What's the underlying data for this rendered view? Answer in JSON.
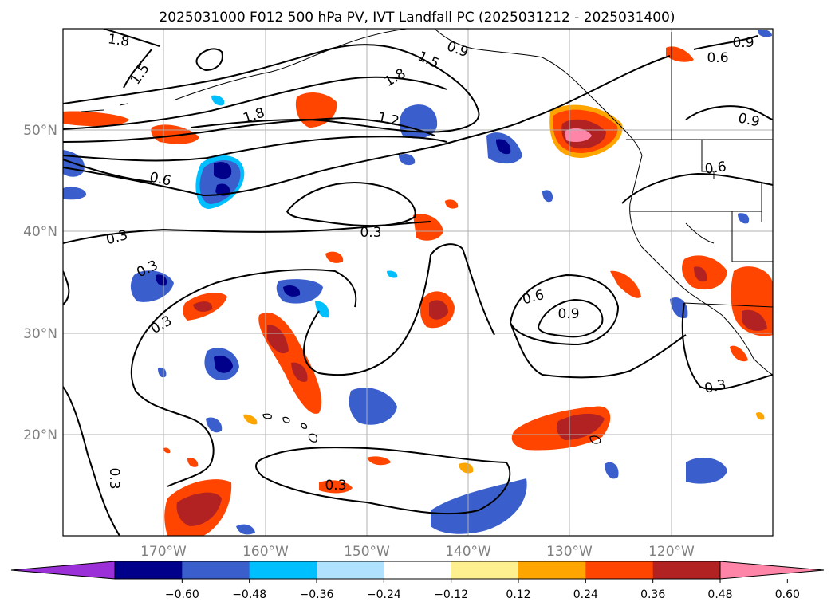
{
  "title": "2025031000 F012 500 hPa PV, IVT Landfall PC (2025031212 - 2025031400)",
  "lat_labels": [
    "50°N",
    "40°N",
    "30°N",
    "20°N"
  ],
  "lon_labels": [
    "170°W",
    "160°W",
    "150°W",
    "140°W",
    "130°W",
    "120°W"
  ],
  "colorbar": {
    "ticks": [
      "−0.60",
      "−0.48",
      "−0.36",
      "−0.24",
      "−0.12",
      "0.12",
      "0.24",
      "0.36",
      "0.48",
      "0.60"
    ],
    "colors": [
      "#9b30d9",
      "#00008b",
      "#3a5fcd",
      "#00bfff",
      "#b0e2ff",
      "#ffffff",
      "#fff08f",
      "#ffa500",
      "#ff4500",
      "#b22222",
      "#ff85a8"
    ]
  },
  "contour_labels": [
    "1.8",
    "1.5",
    "1.8",
    "1.5",
    "1.8",
    "1.2",
    "0.9",
    "0.9",
    "0.6",
    "0.9",
    "0.6",
    "0.6",
    "0.3",
    "0.3",
    "0.3",
    "0.3",
    "0.6",
    "0.9",
    "0.3",
    "0.3",
    "0.3"
  ],
  "colors": {
    "contour": "#000000",
    "grid": "#b0b0b0",
    "coast": "#000000"
  }
}
